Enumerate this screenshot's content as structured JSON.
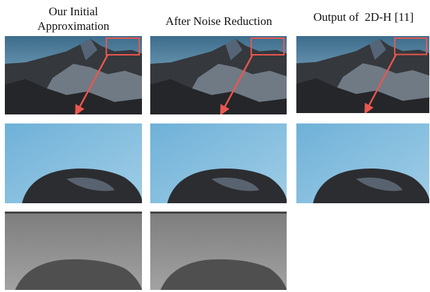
{
  "columns": [
    {
      "title_lines": [
        "Our Initial",
        "Approximation"
      ]
    },
    {
      "title_lines": [
        "After Noise Reduction"
      ]
    },
    {
      "title_lines": [
        "Output of  2D-H [11]"
      ]
    }
  ]
}
